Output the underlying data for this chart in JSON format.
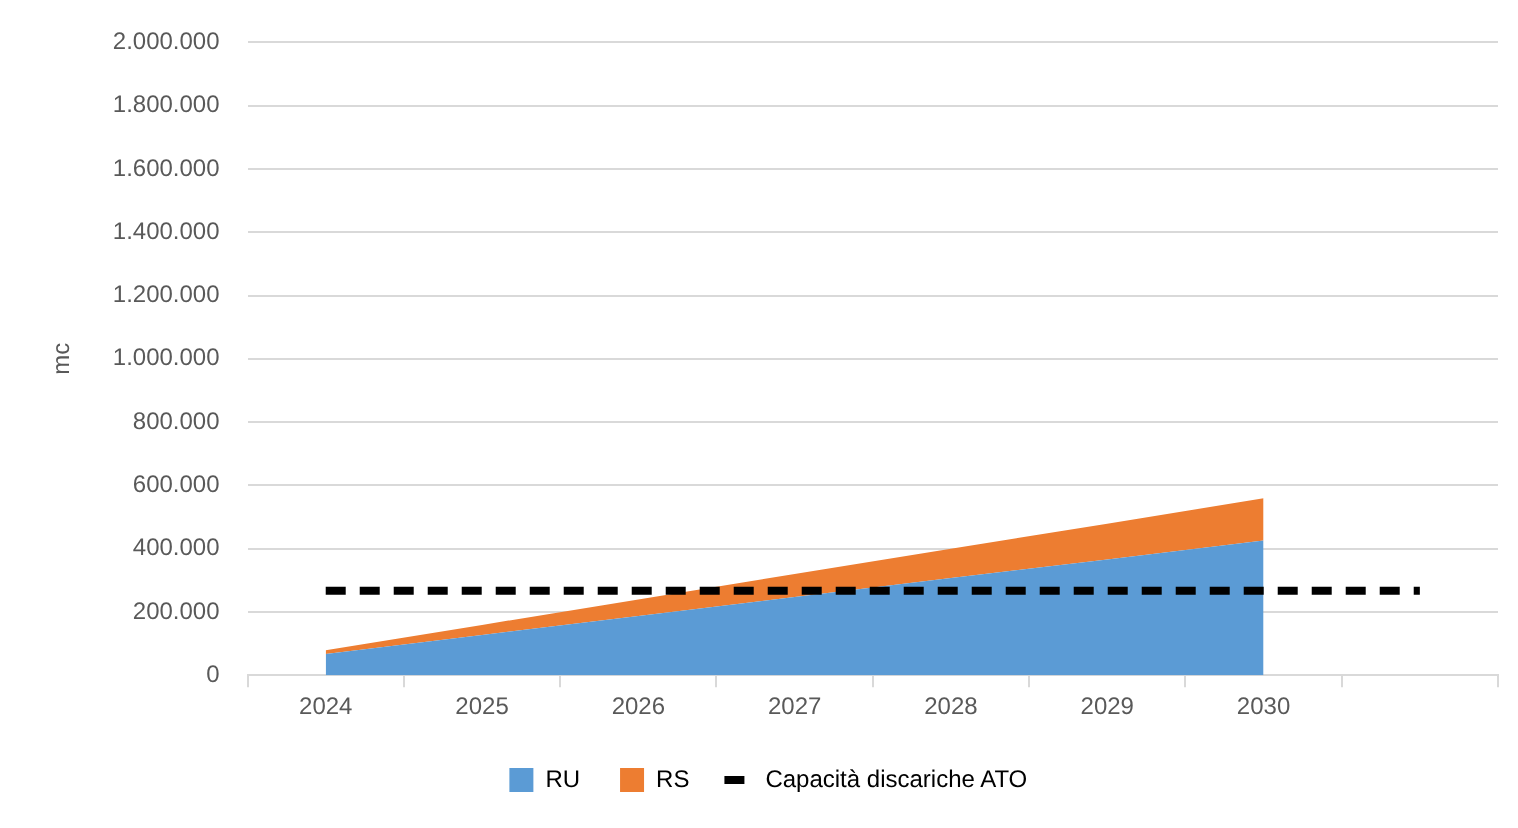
{
  "chart_data": {
    "type": "area",
    "stacked": true,
    "ylabel": "mc",
    "categories": [
      "2024",
      "2025",
      "2026",
      "2027",
      "2028",
      "2029",
      "2030",
      null
    ],
    "series": [
      {
        "name": "RU",
        "type": "area",
        "color": "#5b9bd5",
        "values": [
          67000,
          127000,
          187000,
          247000,
          307000,
          366000,
          426000,
          null
        ]
      },
      {
        "name": "RS",
        "type": "area",
        "color": "#ed7d31",
        "values": [
          12000,
          32000,
          52000,
          73000,
          93000,
          113000,
          133000,
          null
        ]
      },
      {
        "name": "Capacità discariche ATO",
        "type": "line",
        "line_style": "dashed",
        "color": "#000000",
        "values": [
          267000,
          267000,
          267000,
          267000,
          267000,
          267000,
          267000,
          267000
        ]
      }
    ],
    "ylim": [
      0,
      2000000
    ],
    "yticks": [
      {
        "value": 0,
        "label": "0"
      },
      {
        "value": 200000,
        "label": "200.000"
      },
      {
        "value": 400000,
        "label": "400.000"
      },
      {
        "value": 600000,
        "label": "600.000"
      },
      {
        "value": 800000,
        "label": "800.000"
      },
      {
        "value": 1000000,
        "label": "1.000.000"
      },
      {
        "value": 1200000,
        "label": "1.200.000"
      },
      {
        "value": 1400000,
        "label": "1.400.000"
      },
      {
        "value": 1600000,
        "label": "1.600.000"
      },
      {
        "value": 1800000,
        "label": "1.800.000"
      },
      {
        "value": 2000000,
        "label": "2.000.000"
      }
    ],
    "grid": "y",
    "legend": "bottom"
  }
}
